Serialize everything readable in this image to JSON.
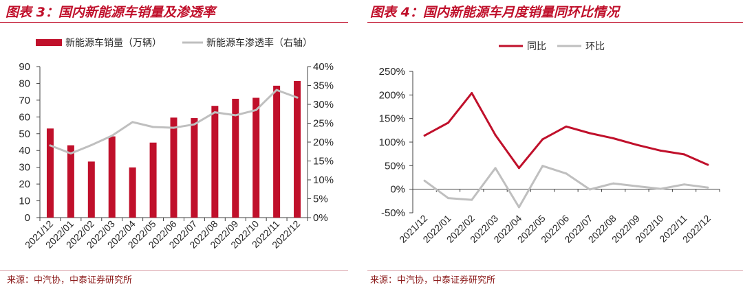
{
  "colors": {
    "accent": "#C0102B",
    "secondary": "#BFBFBF",
    "axis": "#404040"
  },
  "chart_data": [
    {
      "type": "bar",
      "title": "图表 3：国内新能源车销量及渗透率",
      "categories": [
        "2021/12",
        "2022/01",
        "2022/02",
        "2022/03",
        "2022/04",
        "2022/05",
        "2022/06",
        "2022/07",
        "2022/08",
        "2022/09",
        "2022/10",
        "2022/11",
        "2022/12"
      ],
      "series": [
        {
          "name": "新能源车销量（万辆）",
          "type": "bar",
          "axis": "left",
          "color": "#C0102B",
          "values": [
            53.1,
            43.1,
            33.4,
            48.4,
            29.9,
            44.7,
            59.6,
            59.3,
            66.6,
            70.8,
            71.4,
            78.6,
            81.4
          ]
        },
        {
          "name": "新能源车渗透率（右轴）",
          "type": "line",
          "axis": "right",
          "color": "#BFBFBF",
          "values": [
            19.1,
            17.0,
            19.2,
            21.7,
            25.3,
            24.0,
            23.8,
            24.7,
            27.9,
            27.1,
            28.5,
            33.8,
            31.8
          ]
        }
      ],
      "ylim": [
        0,
        90
      ],
      "yticks": [
        "0",
        "10",
        "20",
        "30",
        "40",
        "50",
        "60",
        "70",
        "80",
        "90"
      ],
      "y2lim": [
        0,
        40
      ],
      "y2ticks": [
        "0%",
        "5%",
        "10%",
        "15%",
        "20%",
        "25%",
        "30%",
        "35%",
        "40%"
      ],
      "grid": false,
      "legend": "top",
      "source": "来源：中汽协，中泰证券研究所"
    },
    {
      "type": "line",
      "title": "图表 4：国内新能源车月度销量同环比情况",
      "categories": [
        "2021/12",
        "2022/01",
        "2022/02",
        "2022/03",
        "2022/04",
        "2022/05",
        "2022/06",
        "2022/07",
        "2022/08",
        "2022/09",
        "2022/10",
        "2022/11",
        "2022/12"
      ],
      "series": [
        {
          "name": "同比",
          "color": "#C0102B",
          "values": [
            114,
            141,
            204,
            115,
            45,
            106,
            133,
            119,
            108,
            94,
            82,
            74,
            52
          ]
        },
        {
          "name": "环比",
          "color": "#BFBFBF",
          "values": [
            18,
            -18.8,
            -22.5,
            44.9,
            -38.2,
            49.5,
            33.3,
            -0.5,
            12.3,
            6.3,
            0.8,
            10.1,
            3.6
          ]
        }
      ],
      "ylim": [
        -50,
        250
      ],
      "yticks": [
        "-50%",
        "0%",
        "50%",
        "100%",
        "150%",
        "200%",
        "250%"
      ],
      "grid": false,
      "legend": "top",
      "source": "来源：中汽协，中泰证券研究所"
    }
  ]
}
